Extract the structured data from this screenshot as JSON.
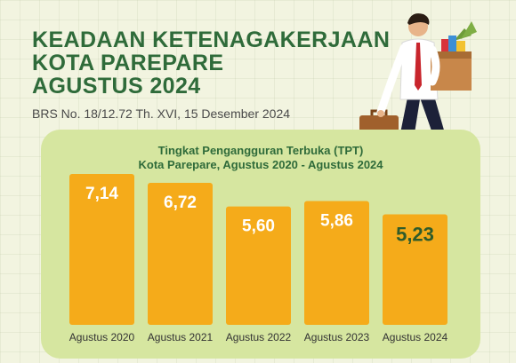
{
  "header": {
    "title_lines": [
      "KEADAAN KETENAGAKERJAAN",
      "KOTA PAREPARE",
      "AGUSTUS 2024"
    ],
    "release": "BRS No. 18/12.72 Th. XVI, 15 Desember 2024"
  },
  "colors": {
    "title": "#2f6b3a",
    "bar": "#f5ab1a",
    "label_light": "#ffffff",
    "label_dark": "#2f5b2a",
    "panel": "#d6e6a0"
  },
  "chart_data": {
    "type": "bar",
    "title": "Tingkat Pengangguran Terbuka (TPT)",
    "subtitle": "Kota Parepare, Agustus 2020 - Agustus 2024",
    "categories": [
      "Agustus 2020",
      "Agustus 2021",
      "Agustus 2022",
      "Agustus 2023",
      "Agustus 2024"
    ],
    "values": [
      7.14,
      6.72,
      5.6,
      5.86,
      5.23
    ],
    "value_labels": [
      "7,14",
      "6,72",
      "5,60",
      "5,86",
      "5,23"
    ],
    "ylim": [
      0,
      7.14
    ],
    "grid": false,
    "legend": "none"
  }
}
